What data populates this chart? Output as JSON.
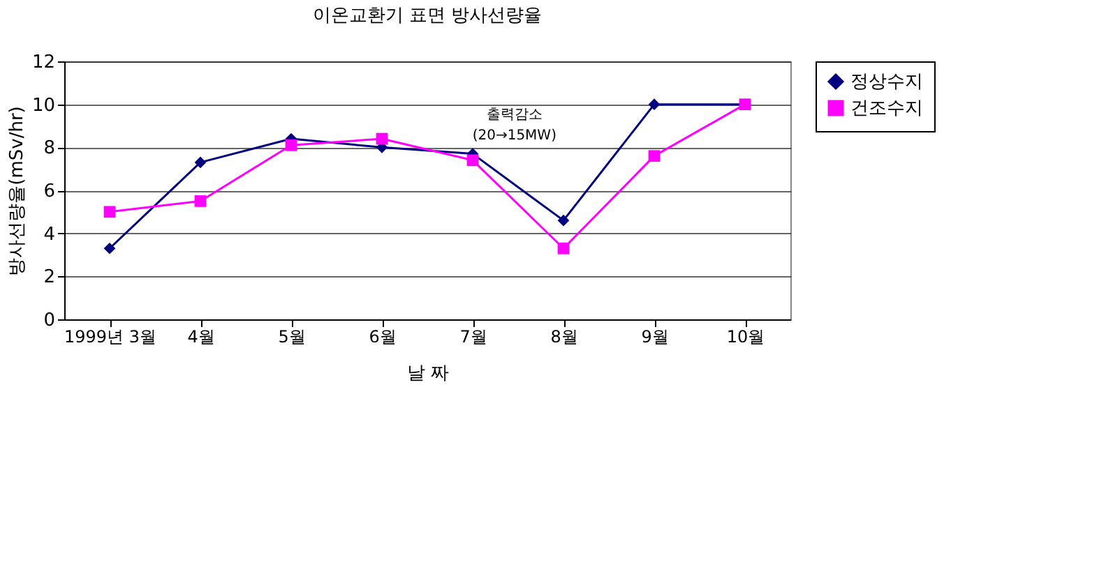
{
  "chart_data": {
    "type": "line",
    "title": "이온교환기 표면 방사선량율",
    "xlabel": "날 짜",
    "ylabel": "방사선량율(mSv/hr)",
    "categories": [
      "1999년 3월",
      "4월",
      "5월",
      "6월",
      "7월",
      "8월",
      "9월",
      "10월"
    ],
    "series": [
      {
        "name": "정상수지",
        "color": "#000080",
        "marker": "diamond",
        "values": [
          3.3,
          7.3,
          8.4,
          8.0,
          7.7,
          4.6,
          10,
          10
        ]
      },
      {
        "name": "건조수지",
        "color": "#ff00ff",
        "marker": "square",
        "values": [
          5.0,
          5.5,
          8.1,
          8.4,
          7.4,
          3.3,
          7.6,
          10
        ]
      }
    ],
    "ylim": [
      0,
      12
    ],
    "yticks": [
      0,
      2,
      4,
      6,
      8,
      10,
      12
    ],
    "grid": "y",
    "legend": "right",
    "annotations": [
      "출력감소 (20→15MW)"
    ]
  }
}
